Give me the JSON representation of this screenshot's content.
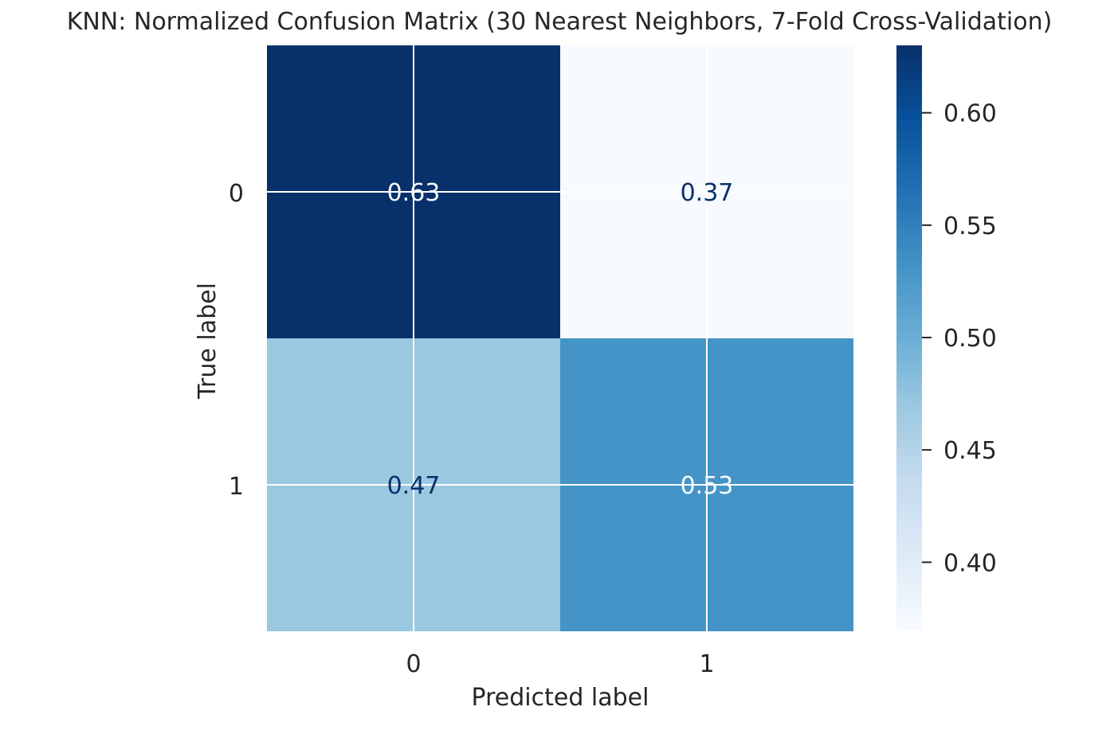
{
  "chart_data": {
    "type": "heatmap",
    "title": "KNN: Normalized Confusion Matrix (30 Nearest Neighbors, 7-Fold Cross-Validation)",
    "xlabel": "Predicted label",
    "ylabel": "True label",
    "x_categories": [
      "0",
      "1"
    ],
    "y_categories": [
      "0",
      "1"
    ],
    "values": [
      [
        0.63,
        0.37
      ],
      [
        0.47,
        0.53
      ]
    ],
    "cell_labels": [
      [
        "0.63",
        "0.37"
      ],
      [
        "0.47",
        "0.53"
      ]
    ],
    "colormap": "Blues",
    "colorbar": {
      "range": [
        0.37,
        0.63
      ],
      "ticks": [
        0.4,
        0.45,
        0.5,
        0.55,
        0.6
      ],
      "tick_labels": [
        "0.40",
        "0.45",
        "0.50",
        "0.55",
        "0.60"
      ]
    },
    "grid": true,
    "colors": {
      "text": "#262626",
      "text_on_dark": "#f7fbff",
      "text_on_light": "#08306b",
      "grid": "#ffffff"
    }
  }
}
